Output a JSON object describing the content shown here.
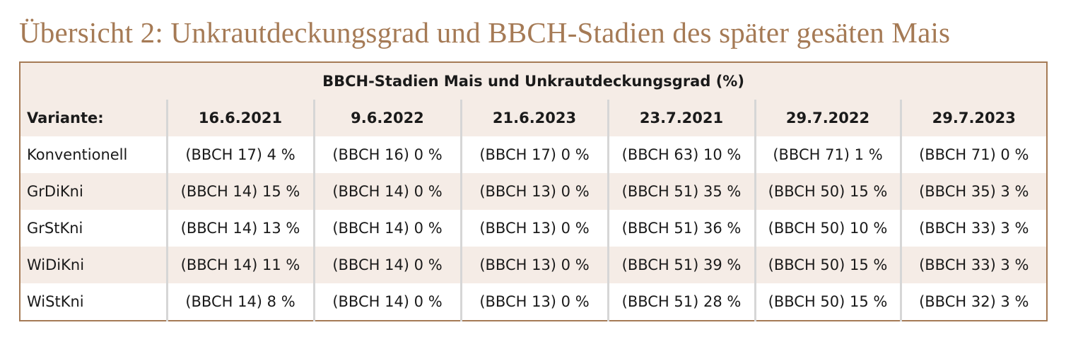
{
  "title": "Übersicht 2: Unkrautdeckungsgrad und BBCH-Stadien des später gesäten Mais",
  "table": {
    "caption": "BBCH-Stadien Mais und Unkrautdeckungsgrad (%)",
    "header": [
      "Variante:",
      "16.6.2021",
      "9.6.2022",
      "21.6.2023",
      "23.7.2021",
      "29.7.2022",
      "29.7.2023"
    ],
    "rows": [
      [
        "Konventionell",
        "(BBCH 17) 4 %",
        "(BBCH 16) 0 %",
        "(BBCH 17) 0 %",
        "(BBCH 63) 10 %",
        "(BBCH 71) 1 %",
        "(BBCH 71) 0 %"
      ],
      [
        "GrDiKni",
        "(BBCH 14) 15 %",
        "(BBCH 14) 0 %",
        "(BBCH 13) 0 %",
        "(BBCH 51) 35 %",
        "(BBCH 50) 15 %",
        "(BBCH 35) 3 %"
      ],
      [
        "GrStKni",
        "(BBCH 14) 13 %",
        "(BBCH 14) 0 %",
        "(BBCH 13) 0 %",
        "(BBCH 51) 36 %",
        "(BBCH 50) 10 %",
        "(BBCH 33) 3 %"
      ],
      [
        "WiDiKni",
        "(BBCH 14) 11 %",
        "(BBCH 14) 0 %",
        "(BBCH 13) 0 %",
        "(BBCH 51) 39 %",
        "(BBCH 50) 15 %",
        "(BBCH 33) 3 %"
      ],
      [
        "WiStKni",
        "(BBCH 14) 8 %",
        "(BBCH 14) 0 %",
        "(BBCH 13) 0 %",
        "(BBCH 51) 28 %",
        "(BBCH 50) 15 %",
        "(BBCH 32) 3 %"
      ]
    ]
  }
}
